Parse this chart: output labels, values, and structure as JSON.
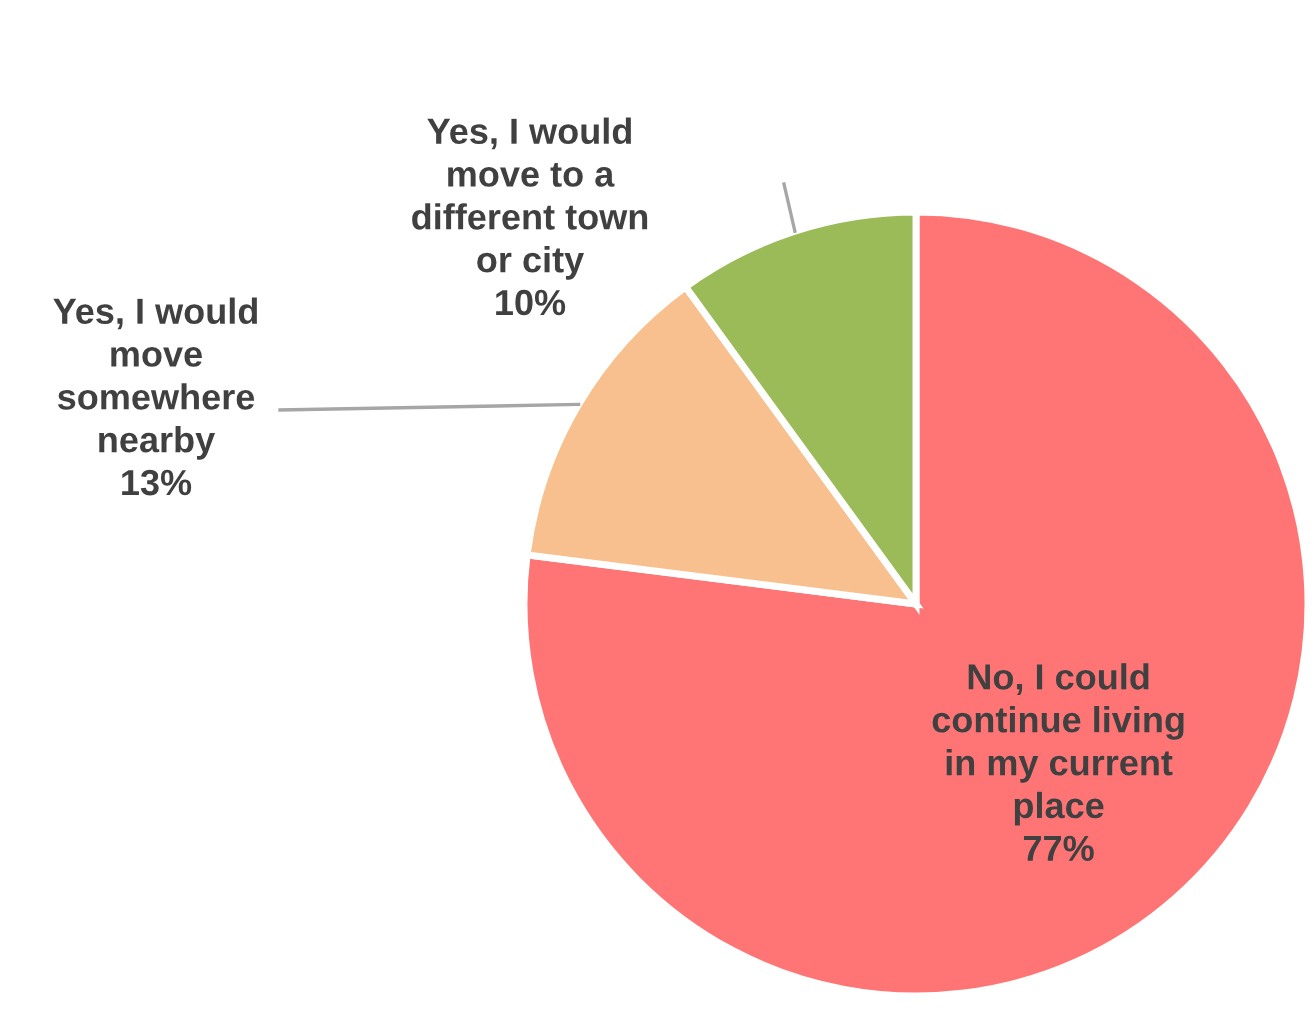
{
  "chart_data": {
    "type": "pie",
    "categories": [
      "No, I could\ncontinue living\nin my current\nplace",
      "Yes, I would\nmove\nsomewhere\nnearby",
      "Yes, I would\nmove to a\ndifferent town\nor city"
    ],
    "values": [
      77,
      13,
      10
    ],
    "colors": [
      "#ff7575",
      "#f8c08f",
      "#9bbb59"
    ],
    "value_labels": [
      "77%",
      "13%",
      "10%"
    ]
  }
}
